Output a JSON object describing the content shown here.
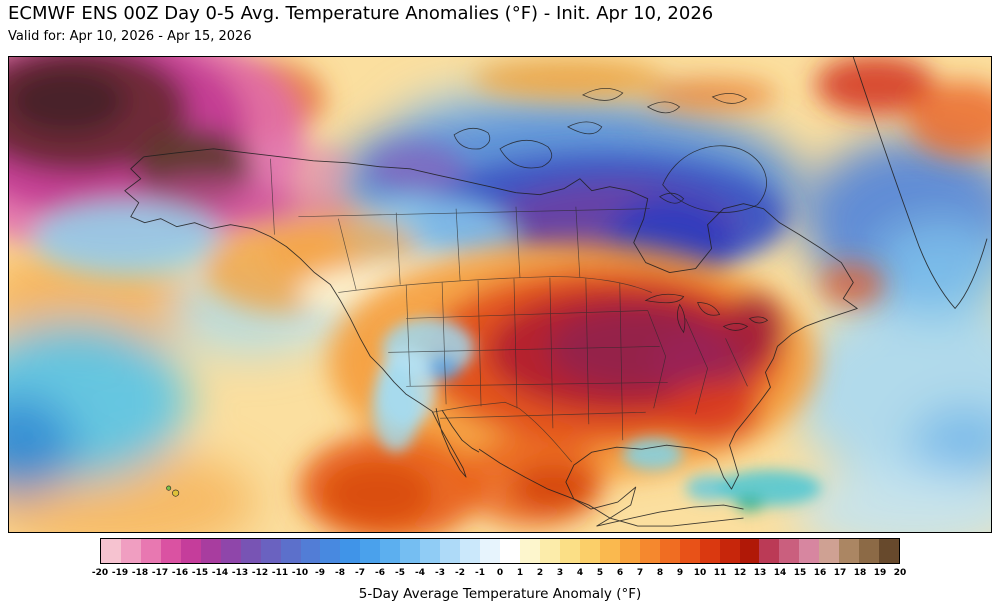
{
  "header": {
    "title": "ECMWF ENS 00Z Day 0-5 Avg. Temperature Anomalies (°F) - Init. Apr 10, 2026",
    "subtitle": "Valid for: Apr 10, 2026 - Apr 15, 2026"
  },
  "chart_data": {
    "type": "heatmap",
    "title": "ECMWF ENS 00Z Day 0-5 Avg. Temperature Anomalies (°F) - Init. Apr 10, 2026",
    "subtitle": "Valid for: Apr 10, 2026 - Apr 15, 2026",
    "model": "ECMWF ENS",
    "init_time": "00Z Apr 10, 2026",
    "valid_period": "Apr 10, 2026 - Apr 15, 2026",
    "variable": "5-Day Average Temperature Anomaly (°F)",
    "map_extent": "North America and adjacent Pacific / Atlantic / Arctic",
    "colorbar": {
      "label": "5-Day Average Temperature Anomaly (°F)",
      "range": [
        -20,
        20
      ],
      "ticks": [
        -20,
        -19,
        -18,
        -17,
        -16,
        -15,
        -14,
        -13,
        -12,
        -11,
        -10,
        -9,
        -8,
        -7,
        -6,
        -5,
        -4,
        -3,
        -2,
        -1,
        0,
        1,
        2,
        3,
        4,
        5,
        6,
        7,
        8,
        9,
        10,
        11,
        12,
        13,
        14,
        15,
        16,
        17,
        18,
        19,
        20
      ],
      "segment_colors": [
        "#f6c3d0",
        "#f09ec1",
        "#e878b1",
        "#da52a2",
        "#c53d9b",
        "#a83d9f",
        "#8f46aa",
        "#7854b4",
        "#6a62c0",
        "#5c70cb",
        "#527dd6",
        "#4889e0",
        "#4094e8",
        "#4aa1ec",
        "#5cafef",
        "#75bef2",
        "#90ccf5",
        "#aedaf8",
        "#cbe8fb",
        "#e7f4fd",
        "#ffffff",
        "#fdf6cd",
        "#fcecaa",
        "#fbdf86",
        "#fbcf69",
        "#fab94f",
        "#f8a23c",
        "#f5882e",
        "#f06d22",
        "#e85218",
        "#da3910",
        "#c7260b",
        "#b01807",
        "#bb3a56",
        "#ca5f7e",
        "#d786a0",
        "#cfa193",
        "#ab8663",
        "#8c6a46",
        "#67492c"
      ]
    },
    "regions": [
      {
        "area": "Far northwest corner (Chukotka / NW Bering)",
        "anomaly_f": 18
      },
      {
        "area": "Interior Alaska",
        "anomaly_f": 16
      },
      {
        "area": "Alaska / Yukon magenta band",
        "anomaly_f": 14
      },
      {
        "area": "Bering Sea / Aleutians",
        "anomaly_f": -3
      },
      {
        "area": "Northern Canada / Nunavut (cold core)",
        "anomaly_f": -14
      },
      {
        "area": "Hudson Bay",
        "anomaly_f": -11
      },
      {
        "area": "Arctic Archipelago",
        "anomaly_f": -8
      },
      {
        "area": "Central / Southern Plains US (warm core)",
        "anomaly_f": 14
      },
      {
        "area": "Midwest and Ohio Valley US",
        "anomaly_f": 12
      },
      {
        "area": "Northeast US",
        "anomaly_f": 10
      },
      {
        "area": "Southwest US / California coast",
        "anomaly_f": -3
      },
      {
        "area": "Mexico interior",
        "anomaly_f": 8
      },
      {
        "area": "Eastern Pacific off Mexico",
        "anomaly_f": 9
      },
      {
        "area": "NE Pacific (bottom-left ocean)",
        "anomaly_f": -5
      },
      {
        "area": "Western / central Atlantic",
        "anomaly_f": -3
      },
      {
        "area": "Davis Strait / south of Greenland",
        "anomaly_f": -8
      },
      {
        "area": "Top-right Arctic Atlantic streaks",
        "anomaly_f": 7
      },
      {
        "area": "Southern Canada transition band",
        "anomaly_f": 1
      }
    ]
  }
}
